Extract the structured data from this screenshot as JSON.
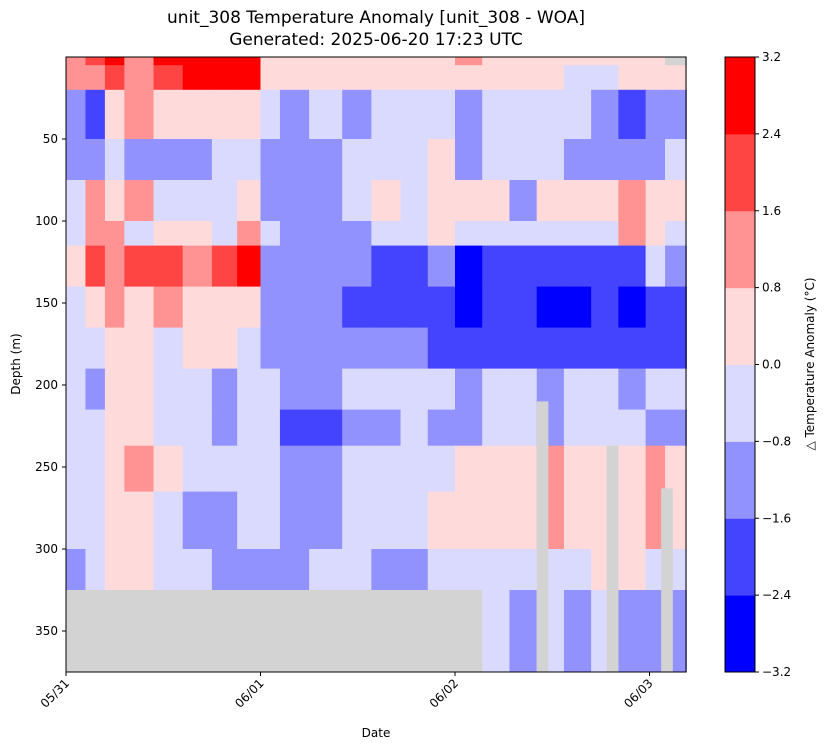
{
  "chart_data": {
    "type": "heatmap",
    "title": "unit_308 Temperature Anomaly [unit_308 - WOA]",
    "subtitle": "Generated: 2025-06-20 17:23 UTC",
    "xlabel": "Date",
    "ylabel": "Depth (m)",
    "colorbar_label": "△ Temperature Anomaly (°C)",
    "x_ticks": [
      {
        "label": "05/31",
        "day": 0
      },
      {
        "label": "06/01",
        "day": 1
      },
      {
        "label": "06/02",
        "day": 2
      },
      {
        "label": "06/03",
        "day": 3
      }
    ],
    "xlim_days": [
      0,
      3.19
    ],
    "ylim": [
      375,
      0
    ],
    "y_ticks": [
      50,
      100,
      150,
      200,
      250,
      300,
      350
    ],
    "color_levels": [
      -3.2,
      -2.4,
      -1.6,
      -0.8,
      0.0,
      0.8,
      1.6,
      2.4,
      3.2
    ],
    "level_colors": [
      "#0000ff",
      "#4444ff",
      "#9292ff",
      "#dadaff",
      "#ffdada",
      "#ff9292",
      "#ff4444",
      "#ff0000"
    ],
    "colorbar_ticks": [
      "−3.2",
      "−2.4",
      "−1.6",
      "−0.8",
      "0.0",
      "0.8",
      "1.6",
      "2.4",
      "3.2"
    ],
    "nodata_color": "#d3d3d3",
    "depth_bins": [
      [
        0,
        5
      ],
      [
        5,
        20
      ],
      [
        20,
        50
      ],
      [
        50,
        75
      ],
      [
        75,
        100
      ],
      [
        100,
        115
      ],
      [
        115,
        140
      ],
      [
        140,
        165
      ],
      [
        165,
        190
      ],
      [
        190,
        215
      ],
      [
        215,
        237
      ],
      [
        237,
        265
      ],
      [
        265,
        300
      ],
      [
        300,
        325
      ],
      [
        325,
        375
      ]
    ],
    "time_bins_days": [
      [
        0.0,
        0.1
      ],
      [
        0.1,
        0.2
      ],
      [
        0.2,
        0.3
      ],
      [
        0.3,
        0.45
      ],
      [
        0.45,
        0.6
      ],
      [
        0.6,
        0.75
      ],
      [
        0.75,
        0.88
      ],
      [
        0.88,
        1.0
      ],
      [
        1.0,
        1.1
      ],
      [
        1.1,
        1.25
      ],
      [
        1.25,
        1.42
      ],
      [
        1.42,
        1.57
      ],
      [
        1.57,
        1.72
      ],
      [
        1.72,
        1.86
      ],
      [
        1.86,
        2.0
      ],
      [
        2.0,
        2.14
      ],
      [
        2.14,
        2.28
      ],
      [
        2.28,
        2.42
      ],
      [
        2.42,
        2.56
      ],
      [
        2.56,
        2.7
      ],
      [
        2.7,
        2.84
      ],
      [
        2.84,
        2.98
      ],
      [
        2.98,
        3.08
      ],
      [
        3.08,
        3.19
      ]
    ],
    "anomaly_grid": [
      [
        1.2,
        2.0,
        2.8,
        1.2,
        2.8,
        2.8,
        2.8,
        2.8,
        0.4,
        0.4,
        0.4,
        0.4,
        0.4,
        0.4,
        0.4,
        1.2,
        0.4,
        0.4,
        0.4,
        0.4,
        0.4,
        0.4,
        0.4,
        null
      ],
      [
        1.2,
        1.2,
        2.0,
        1.2,
        2.0,
        2.8,
        2.8,
        2.8,
        0.4,
        0.4,
        0.4,
        0.4,
        0.4,
        0.4,
        0.4,
        0.4,
        0.4,
        0.4,
        0.4,
        -0.4,
        -0.4,
        0.4,
        0.4,
        0.4
      ],
      [
        -1.2,
        -2.0,
        0.4,
        1.2,
        0.4,
        0.4,
        0.4,
        0.4,
        -0.4,
        -1.2,
        -0.4,
        -1.2,
        -0.4,
        -0.4,
        -0.4,
        -1.2,
        -0.4,
        -0.4,
        -0.4,
        -0.4,
        -1.2,
        -2.0,
        -1.2,
        -1.2
      ],
      [
        -1.2,
        -1.2,
        -0.4,
        -1.2,
        -1.2,
        -1.2,
        -0.4,
        -0.4,
        -1.2,
        -1.2,
        -1.2,
        -0.4,
        -0.4,
        -0.4,
        0.4,
        -1.2,
        -0.4,
        -0.4,
        -0.4,
        -1.2,
        -1.2,
        -1.2,
        -1.2,
        -0.4
      ],
      [
        -0.4,
        1.2,
        0.4,
        1.2,
        -0.4,
        -0.4,
        -0.4,
        0.4,
        -1.2,
        -1.2,
        -1.2,
        -0.4,
        0.4,
        -0.4,
        0.4,
        0.4,
        0.4,
        -1.2,
        0.4,
        0.4,
        0.4,
        1.2,
        0.4,
        0.4
      ],
      [
        -0.4,
        1.2,
        1.2,
        -0.4,
        0.4,
        0.4,
        -0.4,
        1.2,
        -0.4,
        -1.2,
        -1.2,
        -1.2,
        -0.4,
        -0.4,
        0.4,
        -0.4,
        -0.4,
        -0.4,
        -0.4,
        -0.4,
        -0.4,
        1.2,
        0.4,
        -0.4
      ],
      [
        0.4,
        2.0,
        1.2,
        2.0,
        2.0,
        1.2,
        2.0,
        2.8,
        -1.2,
        -1.2,
        -1.2,
        -1.2,
        -2.0,
        -2.0,
        -1.2,
        -2.8,
        -2.0,
        -2.0,
        -2.0,
        -2.0,
        -2.0,
        -2.0,
        -0.4,
        -1.2
      ],
      [
        -0.4,
        0.4,
        1.2,
        0.4,
        1.2,
        0.4,
        0.4,
        0.4,
        -1.2,
        -1.2,
        -1.2,
        -2.0,
        -2.0,
        -2.0,
        -2.0,
        -2.8,
        -2.0,
        -2.0,
        -2.8,
        -2.8,
        -2.0,
        -2.8,
        -2.0,
        -2.0
      ],
      [
        -0.4,
        -0.4,
        0.4,
        0.4,
        -0.4,
        0.4,
        0.4,
        -0.4,
        -1.2,
        -1.2,
        -1.2,
        -1.2,
        -1.2,
        -1.2,
        -2.0,
        -2.0,
        -2.0,
        -2.0,
        -2.0,
        -2.0,
        -2.0,
        -2.0,
        -2.0,
        -2.0
      ],
      [
        -0.4,
        -1.2,
        0.4,
        0.4,
        -0.4,
        -0.4,
        -1.2,
        -0.4,
        -0.4,
        -1.2,
        -1.2,
        -0.4,
        -0.4,
        -0.4,
        -0.4,
        -1.2,
        -0.4,
        -0.4,
        -1.2,
        -0.4,
        -0.4,
        -1.2,
        -0.4,
        -0.4
      ],
      [
        -0.4,
        -0.4,
        0.4,
        0.4,
        -0.4,
        -0.4,
        -1.2,
        -0.4,
        -0.4,
        -2.0,
        -2.0,
        -1.2,
        -1.2,
        -0.4,
        -1.2,
        -1.2,
        -0.4,
        -0.4,
        -1.2,
        -0.4,
        -0.4,
        -0.4,
        -1.2,
        -1.2
      ],
      [
        -0.4,
        -0.4,
        0.4,
        1.2,
        0.4,
        -0.4,
        -0.4,
        -0.4,
        -0.4,
        -1.2,
        -1.2,
        -0.4,
        -0.4,
        -0.4,
        -0.4,
        0.4,
        0.4,
        0.4,
        1.2,
        0.4,
        0.4,
        0.4,
        1.2,
        0.4
      ],
      [
        -0.4,
        -0.4,
        0.4,
        0.4,
        -0.4,
        -1.2,
        -1.2,
        -0.4,
        -0.4,
        -1.2,
        -1.2,
        -0.4,
        -0.4,
        -0.4,
        0.4,
        0.4,
        0.4,
        0.4,
        1.2,
        0.4,
        0.4,
        0.4,
        1.2,
        0.4
      ],
      [
        -1.2,
        -0.4,
        0.4,
        0.4,
        -0.4,
        -0.4,
        -1.2,
        -1.2,
        -1.2,
        -1.2,
        -0.4,
        -0.4,
        -1.2,
        -1.2,
        -0.4,
        -0.4,
        -0.4,
        -0.4,
        -0.4,
        -0.4,
        0.4,
        0.4,
        -0.4,
        -0.4
      ],
      [
        null,
        null,
        null,
        null,
        null,
        null,
        null,
        null,
        null,
        null,
        null,
        null,
        null,
        null,
        null,
        null,
        -0.4,
        -1.2,
        -0.4,
        -1.2,
        -0.4,
        -1.2,
        -1.2,
        -1.2
      ]
    ],
    "nodata_columns": [
      {
        "day_range": [
          2.42,
          2.48
        ],
        "depth_range": [
          210,
          375
        ]
      },
      {
        "day_range": [
          2.78,
          2.84
        ],
        "depth_range": [
          237,
          375
        ]
      },
      {
        "day_range": [
          3.06,
          3.12
        ],
        "depth_range": [
          263,
          375
        ]
      }
    ]
  }
}
